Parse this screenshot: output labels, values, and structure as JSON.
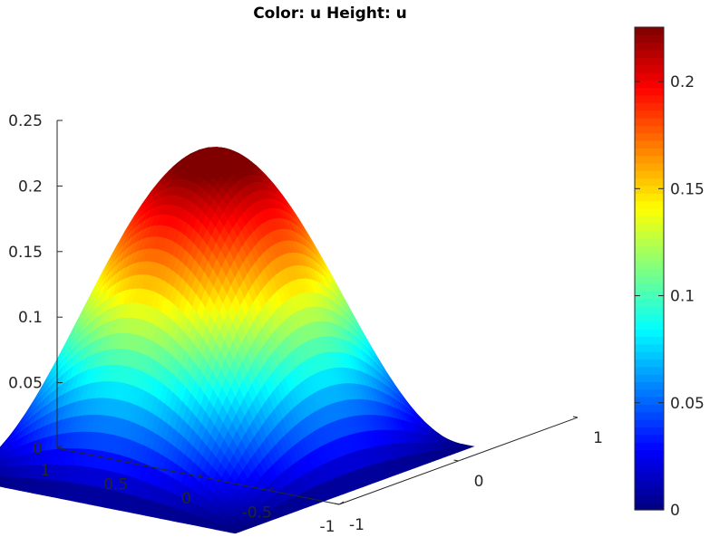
{
  "chart_data": {
    "type": "surface",
    "title": "Color: u  Height: u",
    "function": "u(x,y) = 0.2387 * cos(pi*x/2) * cos(pi*y/2)",
    "xlim": [
      -1,
      1
    ],
    "ylim": [
      -1,
      1
    ],
    "zlim": [
      0,
      0.25
    ],
    "peak_value": 0.2387,
    "colormap": "jet",
    "grid": false,
    "z_axis": {
      "ticks": [
        0,
        0.05,
        0.1,
        0.15,
        0.2,
        0.25
      ],
      "tick_labels": [
        "0",
        "0.05",
        "0.1",
        "0.15",
        "0.2",
        "0.25"
      ]
    },
    "y_axis": {
      "ticks": [
        1,
        0.5,
        0,
        -0.5,
        -1
      ],
      "tick_labels": [
        "1",
        "0.5",
        "0",
        "-0.5",
        "-1"
      ]
    },
    "x_axis": {
      "ticks": [
        -1,
        0,
        1
      ],
      "tick_labels": [
        "-1",
        "0",
        "1"
      ]
    },
    "colorbar": {
      "range": [
        0,
        0.2254
      ],
      "ticks": [
        0,
        0.05,
        0.1,
        0.15,
        0.2
      ],
      "tick_labels": [
        "0",
        "0.05",
        "0.1",
        "0.15",
        "0.2"
      ],
      "position": "right"
    }
  }
}
